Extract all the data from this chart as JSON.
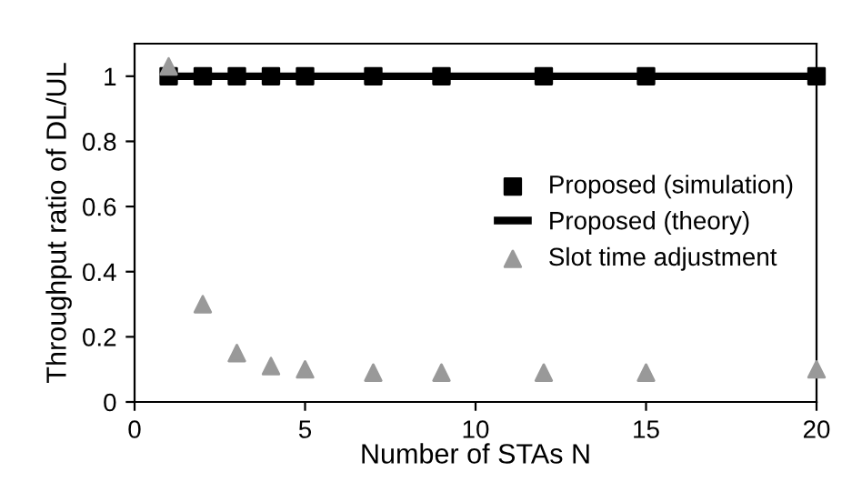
{
  "chart_data": {
    "type": "scatter",
    "xlabel": "Number of STAs N",
    "ylabel": "Throughput ratio of DL/UL",
    "xlim": [
      0,
      20
    ],
    "xticks": [
      0,
      5,
      10,
      15,
      20
    ],
    "ylim": [
      0,
      1.1
    ],
    "yticks": [
      0,
      0.2,
      0.4,
      0.6,
      0.8,
      1
    ],
    "grid": false,
    "legend": "right",
    "series": [
      {
        "name": "Proposed (simulation)",
        "marker": "square",
        "color": "#000000",
        "x": [
          1,
          2,
          3,
          4,
          5,
          7,
          9,
          12,
          15,
          20
        ],
        "values": [
          1,
          1,
          1,
          1,
          1,
          1,
          1,
          1,
          1,
          1
        ]
      },
      {
        "name": "Proposed (theory)",
        "type": "line",
        "marker": "none",
        "line_style": "solid",
        "color": "#000000",
        "x": [
          1,
          20
        ],
        "values": [
          1,
          1
        ]
      },
      {
        "name": "Slot time adjustment",
        "marker": "triangle",
        "color": "#999999",
        "x": [
          1,
          2,
          3,
          4,
          5,
          7,
          9,
          12,
          15,
          20
        ],
        "values": [
          1.03,
          0.3,
          0.15,
          0.11,
          0.1,
          0.09,
          0.09,
          0.09,
          0.09,
          0.1
        ]
      }
    ]
  }
}
